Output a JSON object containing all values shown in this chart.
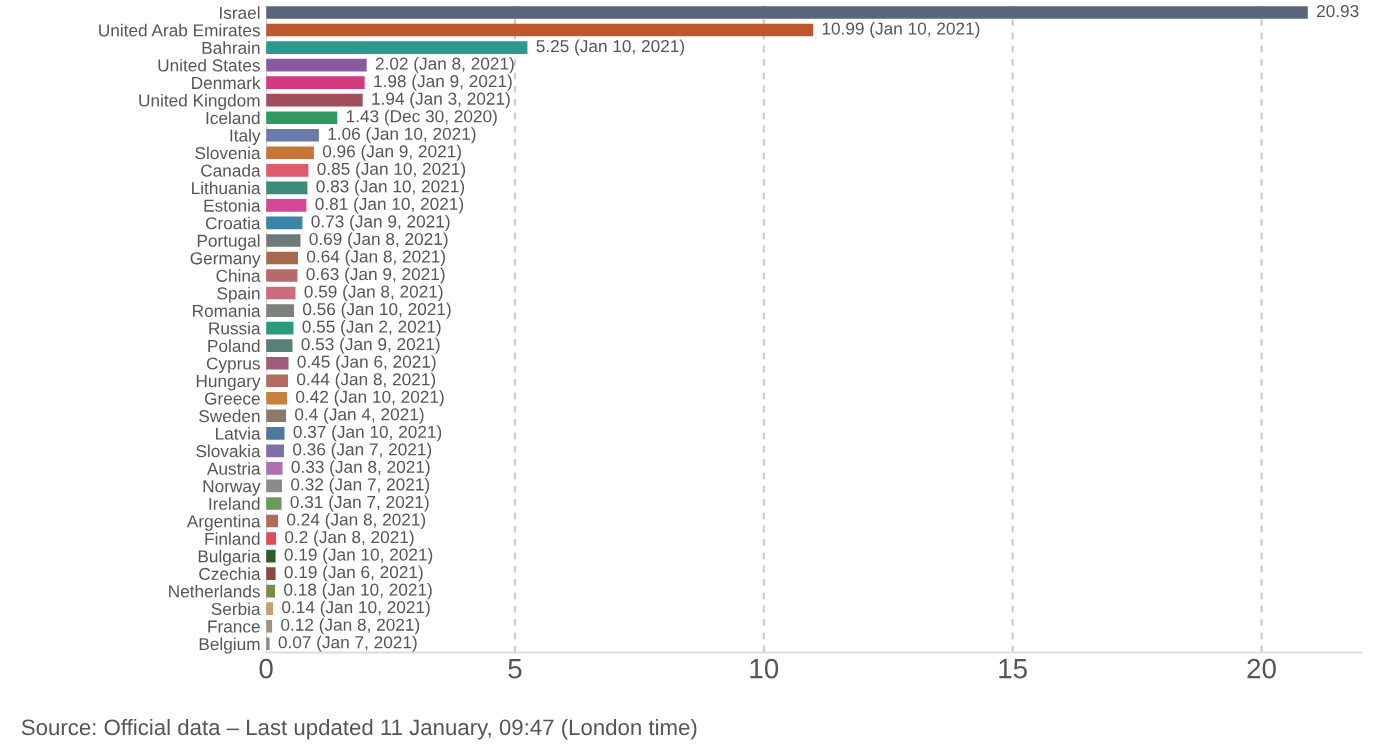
{
  "chart_data": {
    "type": "bar",
    "orientation": "horizontal",
    "categories": [
      "Israel",
      "United Arab Emirates",
      "Bahrain",
      "United States",
      "Denmark",
      "United Kingdom",
      "Iceland",
      "Italy",
      "Slovenia",
      "Canada",
      "Lithuania",
      "Estonia",
      "Croatia",
      "Portugal",
      "Germany",
      "China",
      "Spain",
      "Romania",
      "Russia",
      "Poland",
      "Cyprus",
      "Hungary",
      "Greece",
      "Sweden",
      "Latvia",
      "Slovakia",
      "Austria",
      "Norway",
      "Ireland",
      "Argentina",
      "Finland",
      "Bulgaria",
      "Czechia",
      "Netherlands",
      "Serbia",
      "France",
      "Belgium"
    ],
    "values": [
      20.93,
      10.99,
      5.25,
      2.02,
      1.98,
      1.94,
      1.43,
      1.06,
      0.96,
      0.85,
      0.83,
      0.81,
      0.73,
      0.69,
      0.64,
      0.63,
      0.59,
      0.56,
      0.55,
      0.53,
      0.45,
      0.44,
      0.42,
      0.4,
      0.37,
      0.36,
      0.33,
      0.32,
      0.31,
      0.24,
      0.2,
      0.19,
      0.19,
      0.18,
      0.14,
      0.12,
      0.07
    ],
    "value_labels": [
      "20.93",
      "10.99 (Jan 10, 2021)",
      "5.25 (Jan 10, 2021)",
      "2.02 (Jan 8, 2021)",
      "1.98 (Jan 9, 2021)",
      "1.94 (Jan 3, 2021)",
      "1.43 (Dec 30, 2020)",
      "1.06 (Jan 10, 2021)",
      "0.96 (Jan 9, 2021)",
      "0.85 (Jan 10, 2021)",
      "0.83 (Jan 10, 2021)",
      "0.81 (Jan 10, 2021)",
      "0.73 (Jan 9, 2021)",
      "0.69 (Jan 8, 2021)",
      "0.64 (Jan 8, 2021)",
      "0.63 (Jan 9, 2021)",
      "0.59 (Jan 8, 2021)",
      "0.56 (Jan 10, 2021)",
      "0.55 (Jan 2, 2021)",
      "0.53 (Jan 9, 2021)",
      "0.45 (Jan 6, 2021)",
      "0.44 (Jan 8, 2021)",
      "0.42 (Jan 10, 2021)",
      "0.4 (Jan 4, 2021)",
      "0.37 (Jan 10, 2021)",
      "0.36 (Jan 7, 2021)",
      "0.33 (Jan 8, 2021)",
      "0.32 (Jan 7, 2021)",
      "0.31 (Jan 7, 2021)",
      "0.24 (Jan 8, 2021)",
      "0.2 (Jan 8, 2021)",
      "0.19 (Jan 10, 2021)",
      "0.19 (Jan 6, 2021)",
      "0.18 (Jan 10, 2021)",
      "0.14 (Jan 10, 2021)",
      "0.12 (Jan 8, 2021)",
      "0.07 (Jan 7, 2021)"
    ],
    "colors": [
      "#58667a",
      "#c0562e",
      "#2a9a8e",
      "#8a5aa0",
      "#d63a7e",
      "#a04e5e",
      "#2e9a5e",
      "#6a7aaa",
      "#c8743a",
      "#e05a6a",
      "#3e8a7a",
      "#d6479a",
      "#3a84a8",
      "#6e7a7a",
      "#a8684a",
      "#b86a6a",
      "#cc6a7e",
      "#7a827a",
      "#2a9a78",
      "#5a7e7a",
      "#a05a7a",
      "#b46a5e",
      "#c8803a",
      "#8a7a6a",
      "#4a7aa0",
      "#8070a8",
      "#b070b0",
      "#8a8a8a",
      "#6a9a5e",
      "#b06a5a",
      "#e04a5a",
      "#2e5e2e",
      "#8a4a3e",
      "#7a8a4e",
      "#c8a070",
      "#a09080",
      "#888888"
    ],
    "xlim": [
      0,
      22
    ],
    "xticks": [
      0,
      5,
      10,
      15,
      20
    ],
    "grid": "x",
    "legend": false,
    "annotations": [
      "Source: Official data – Last updated 11 January, 09:47 (London time)"
    ]
  }
}
